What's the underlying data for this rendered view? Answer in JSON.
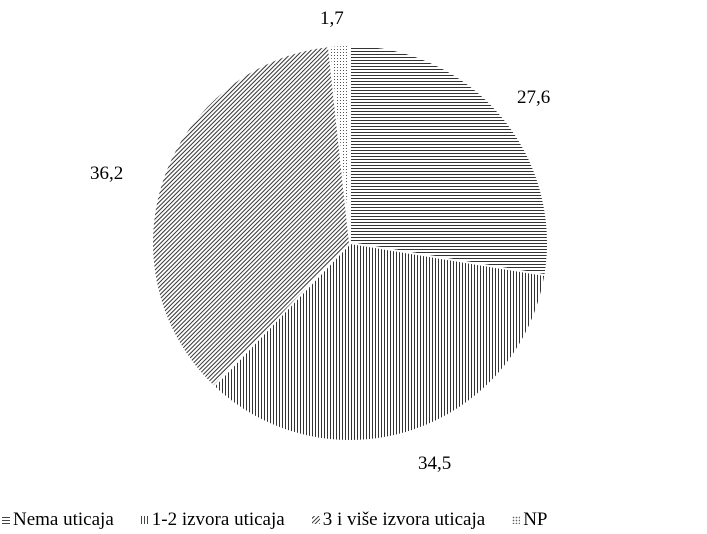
{
  "chart_data": {
    "type": "pie",
    "categories": [
      "Nema uticaja",
      "1-2 izvora uticaja",
      "3 i više izvora uticaja",
      "NP"
    ],
    "values": [
      27.6,
      34.5,
      36.2,
      1.7
    ],
    "data_labels": [
      "27,6",
      "34,5",
      "36,2",
      "1,7"
    ],
    "start_angle_deg": 0,
    "direction": "clockwise",
    "legend_position": "bottom"
  },
  "legend": {
    "items": [
      {
        "label": "Nema uticaja"
      },
      {
        "label": "1-2 izvora uticaja"
      },
      {
        "label": "3 i više izvora uticaja"
      },
      {
        "label": "NP"
      }
    ]
  }
}
